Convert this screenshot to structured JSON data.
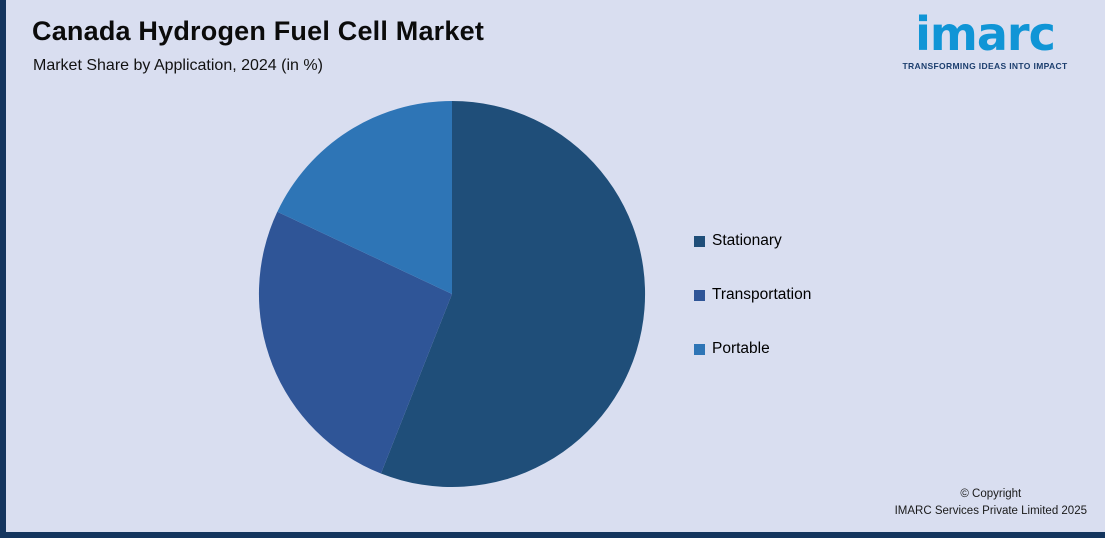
{
  "header": {
    "title": "Canada Hydrogen Fuel Cell Market",
    "subtitle": "Market Share by Application, 2024 (in %)"
  },
  "logo": {
    "wordmark": "imarc",
    "tagline": "TRANSFORMING IDEAS INTO IMPACT"
  },
  "chart_data": {
    "type": "pie",
    "title": "Canada Hydrogen Fuel Cell Market",
    "subtitle": "Market Share by Application, 2024 (in %)",
    "categories": [
      "Stationary",
      "Transportation",
      "Portable"
    ],
    "values": [
      56,
      26,
      18
    ],
    "colors": [
      "#1F4E79",
      "#2F5597",
      "#2E75B6"
    ],
    "unit": "%",
    "start_angle_deg": 0,
    "direction": "clockwise",
    "legend_position": "right",
    "data_labels": false
  },
  "legend": {
    "items": [
      {
        "label": "Stationary",
        "color": "#1F4E79"
      },
      {
        "label": "Transportation",
        "color": "#2F5597"
      },
      {
        "label": "Portable",
        "color": "#2E75B6"
      }
    ]
  },
  "footer": {
    "copyright_line1": "© Copyright",
    "copyright_line2": "IMARC Services Private Limited 2025"
  },
  "colors": {
    "background": "#D9DEF0",
    "frame_border": "#14355E",
    "logo_blue": "#1095D6",
    "tagline_navy": "#1C3E6E"
  }
}
